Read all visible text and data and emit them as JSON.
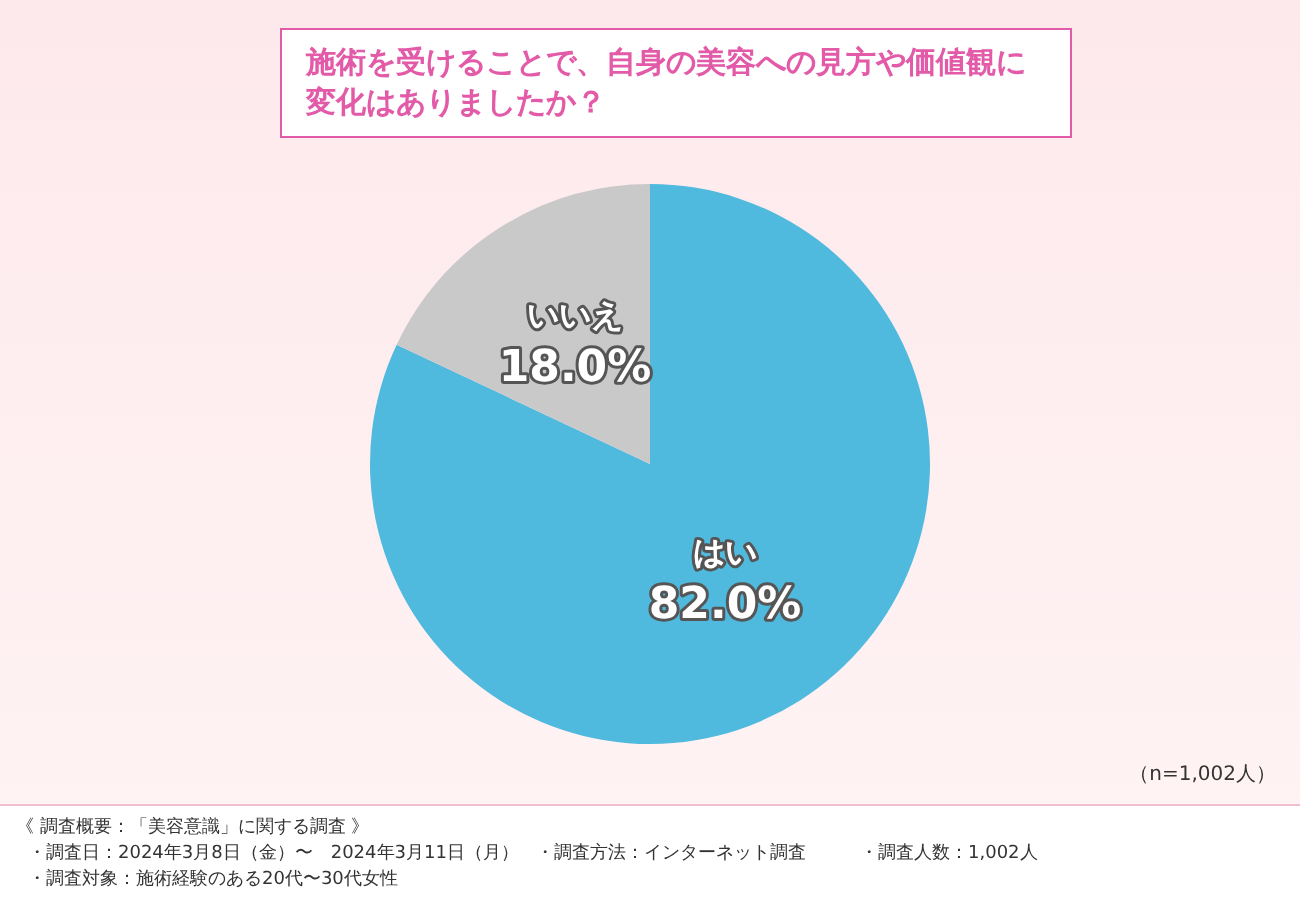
{
  "chart_data": {
    "type": "pie",
    "title": "施術を受けることで、自身の美容への見方や価値観に変化はありましたか？",
    "categories": [
      "はい",
      "いいえ"
    ],
    "values": [
      82.0,
      18.0
    ],
    "colors": [
      "#4fb9de",
      "#c9c9c9"
    ],
    "value_labels": [
      "82.0%",
      "18.0%"
    ],
    "legend": false,
    "annotations": [
      "（n=1,002人）",
      "《 調査概要：「美容意識」に関する調査 》",
      "・調査日：2024年3月8日（金）〜　2024年3月11日（月）",
      "・調査方法：インターネット調査",
      "・調査人数：1,002人",
      "・調査対象：施術経験のある20代〜30代女性"
    ]
  }
}
